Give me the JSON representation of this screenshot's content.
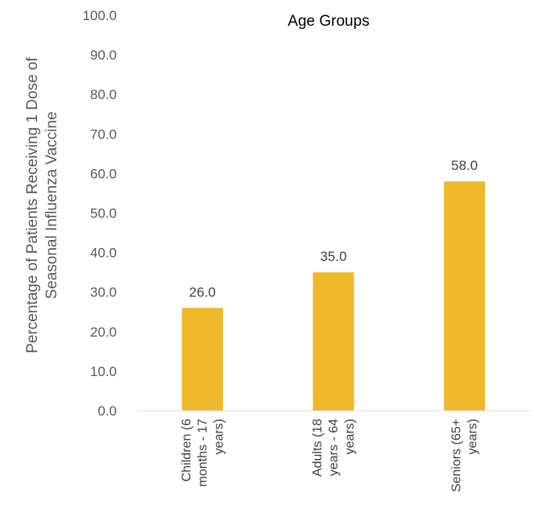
{
  "chart_data": {
    "type": "bar",
    "title": "Age Groups",
    "ylabel_lines": [
      "Percentage of Patients Receiving 1 Dose of",
      "Seasonal Influenza Vaccine"
    ],
    "xlabel": "",
    "categories": [
      [
        "Children (6",
        "months - 17",
        "years)"
      ],
      [
        "Adults (18",
        "years - 64",
        "years)"
      ],
      [
        "Seniors (65+",
        "years)"
      ]
    ],
    "values": [
      26.0,
      35.0,
      58.0
    ],
    "value_labels": [
      "26.0",
      "35.0",
      "58.0"
    ],
    "y_ticks": [
      "0.0",
      "10.0",
      "20.0",
      "30.0",
      "40.0",
      "50.0",
      "60.0",
      "70.0",
      "80.0",
      "90.0",
      "100.0"
    ],
    "ylim": [
      0,
      100
    ],
    "grid": false,
    "legend": "none",
    "bar_color": "#F0B92B",
    "axis_color": "#D9D9D9"
  }
}
